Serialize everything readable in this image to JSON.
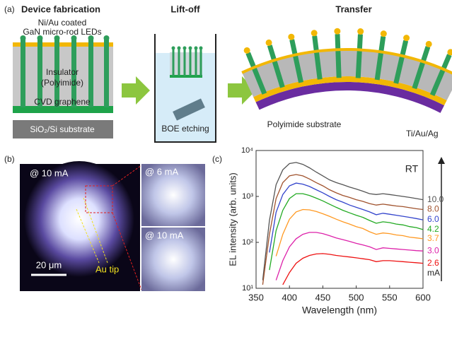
{
  "panel_a": {
    "label": "(a)",
    "title": "Device fabrication",
    "rod_label_1": "Ni/Au coated",
    "rod_label_2": "GaN micro-rod LEDs",
    "insulator_1": "Insulator",
    "insulator_2": "(Polyimide)",
    "graphene": "CVD graphene",
    "substrate": "SiO₂/Si substrate",
    "liftoff_title": "Lift-off",
    "etching": "BOE etching",
    "transfer_title": "Transfer",
    "polyimide": "Polyimide substrate",
    "metal": "Ti/Au/Ag"
  },
  "panel_b": {
    "label": "(b)",
    "main_current": "@ 10 mA",
    "tip": "Au tip",
    "scale_bar": "20 μm",
    "inset_1": "@ 6 mA",
    "inset_2": "@ 10 mA"
  },
  "chart_data": {
    "type": "line",
    "label": "(c)",
    "xlabel": "Wavelength (nm)",
    "ylabel": "EL intensity (arb. units)",
    "annotation": "RT",
    "unit": "mA",
    "log_y": true,
    "xlim": [
      350,
      600
    ],
    "xticks": [
      350,
      400,
      450,
      500,
      550,
      600
    ],
    "ylim": [
      10,
      10000
    ],
    "yticks": [
      {
        "value": 10,
        "label": "10¹"
      },
      {
        "value": 100,
        "label": "10²"
      },
      {
        "value": 1000,
        "label": "10³"
      },
      {
        "value": 10000,
        "label": "10⁴"
      }
    ],
    "x": [
      360,
      370,
      380,
      390,
      400,
      410,
      420,
      430,
      440,
      450,
      460,
      470,
      480,
      490,
      500,
      510,
      520,
      530,
      540,
      550,
      560,
      570,
      580,
      590,
      600
    ],
    "series": [
      {
        "name": "10.0",
        "color": "#555555",
        "values": [
          15,
          300,
          1800,
          3800,
          5200,
          5500,
          5000,
          4200,
          3400,
          2800,
          2300,
          2000,
          1800,
          1600,
          1450,
          1300,
          1150,
          1100,
          1150,
          1100,
          1050,
          1000,
          950,
          900,
          850
        ]
      },
      {
        "name": "8.0",
        "color": "#a0522d",
        "values": [
          12,
          150,
          900,
          2000,
          2800,
          3000,
          2800,
          2400,
          2000,
          1700,
          1400,
          1200,
          1050,
          950,
          850,
          780,
          700,
          650,
          680,
          650,
          620,
          600,
          570,
          540,
          520
        ]
      },
      {
        "name": "6.0",
        "color": "#3344cc",
        "values": [
          null,
          60,
          450,
          1100,
          1700,
          1950,
          1850,
          1650,
          1400,
          1200,
          1000,
          850,
          750,
          650,
          580,
          520,
          460,
          400,
          430,
          410,
          390,
          370,
          350,
          330,
          310
        ]
      },
      {
        "name": "4.2",
        "color": "#22aa22",
        "values": [
          null,
          25,
          180,
          500,
          900,
          1150,
          1150,
          1050,
          920,
          800,
          680,
          580,
          500,
          440,
          390,
          350,
          300,
          260,
          280,
          270,
          250,
          240,
          220,
          210,
          190
        ]
      },
      {
        "name": "3.7",
        "color": "#ff9922",
        "values": [
          null,
          null,
          50,
          150,
          320,
          460,
          520,
          510,
          470,
          420,
          370,
          320,
          280,
          250,
          220,
          200,
          170,
          150,
          160,
          155,
          145,
          140,
          130,
          125,
          120
        ]
      },
      {
        "name": "3.0",
        "color": "#dd22aa",
        "values": [
          null,
          null,
          15,
          40,
          80,
          120,
          150,
          165,
          165,
          155,
          140,
          125,
          115,
          105,
          95,
          88,
          80,
          70,
          76,
          74,
          72,
          70,
          68,
          66,
          65
        ]
      },
      {
        "name": "2.6",
        "color": "#ee1111",
        "values": [
          null,
          null,
          null,
          12,
          22,
          35,
          45,
          52,
          56,
          57,
          55,
          52,
          50,
          48,
          46,
          44,
          42,
          38,
          40,
          40,
          39,
          38,
          37,
          36,
          35
        ]
      }
    ]
  }
}
